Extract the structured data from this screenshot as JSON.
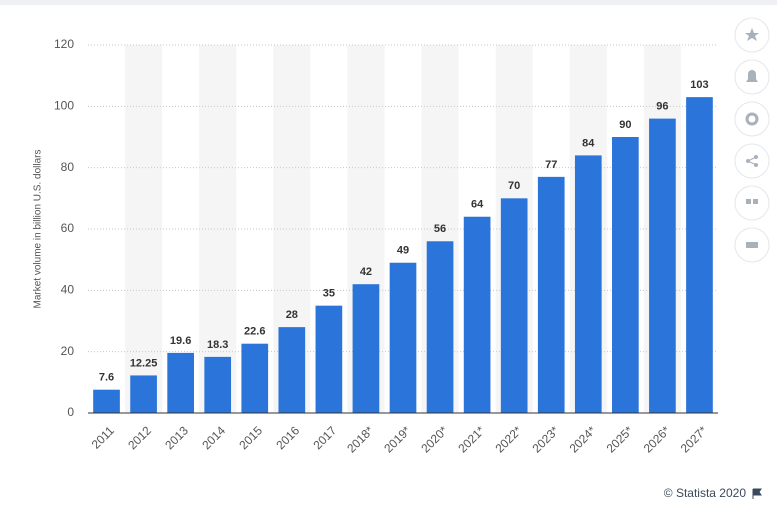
{
  "chart_data": {
    "type": "bar",
    "y_label": "Market volume in billion U.S. dollars",
    "categories": [
      "2011",
      "2012",
      "2013",
      "2014",
      "2015",
      "2016",
      "2017",
      "2018*",
      "2019*",
      "2020*",
      "2021*",
      "2022*",
      "2023*",
      "2024*",
      "2025*",
      "2026*",
      "2027*"
    ],
    "values": [
      7.6,
      12.25,
      19.6,
      18.3,
      22.6,
      28,
      35,
      42,
      49,
      56,
      64,
      70,
      77,
      84,
      90,
      96,
      103
    ],
    "color": "#2b74d9",
    "ylim": [
      0,
      120
    ],
    "yticks": [
      0,
      20,
      40,
      60,
      80,
      100,
      120
    ],
    "grid": true,
    "credit": "© Statista 2020"
  }
}
